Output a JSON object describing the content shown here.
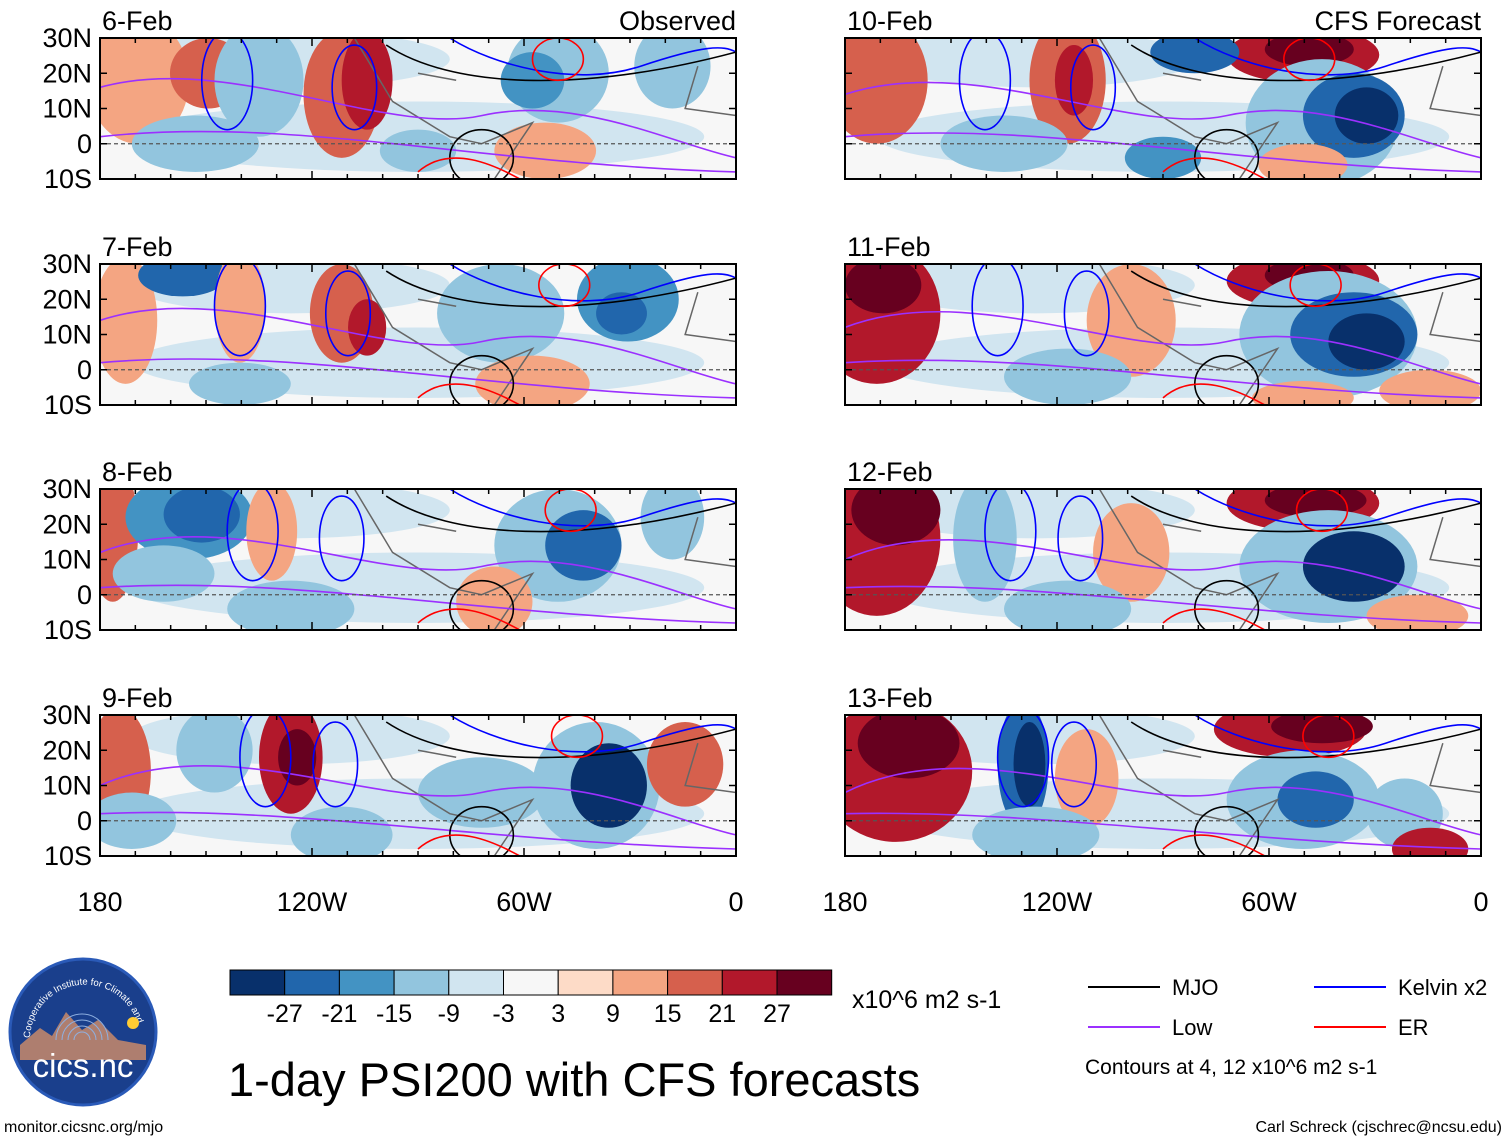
{
  "chart_data": {
    "type": "heatmap",
    "title": "1-day PSI200 with CFS forecasts",
    "variable": "PSI200",
    "units": "x10^6 m2 s-1",
    "columns": [
      {
        "heading": "Observed",
        "panels": [
          "6-Feb",
          "7-Feb",
          "8-Feb",
          "9-Feb"
        ]
      },
      {
        "heading": "CFS Forecast",
        "panels": [
          "10-Feb",
          "11-Feb",
          "12-Feb",
          "13-Feb"
        ]
      }
    ],
    "xaxis": {
      "ticks": [
        {
          "lon": 180,
          "label": "180"
        },
        {
          "lon": 120,
          "label": "120W"
        },
        {
          "lon": 60,
          "label": "60W"
        },
        {
          "lon": 0,
          "label": "0"
        }
      ],
      "xlim": [
        180,
        0
      ]
    },
    "yaxis": {
      "ticks": [
        {
          "lat": 30,
          "label": "30N"
        },
        {
          "lat": 20,
          "label": "20N"
        },
        {
          "lat": 10,
          "label": "10N"
        },
        {
          "lat": 0,
          "label": "0"
        },
        {
          "lat": -10,
          "label": "10S"
        }
      ],
      "ylim": [
        -10,
        30
      ]
    },
    "colorbar": {
      "colors": [
        "#08306b",
        "#2166ac",
        "#4393c3",
        "#92c5de",
        "#d1e5f0",
        "#f7f7f7",
        "#fddbc7",
        "#f4a582",
        "#d6604d",
        "#b2182b",
        "#67001f"
      ],
      "tick_labels": [
        "-27",
        "-21",
        "-15",
        "-9",
        "-3",
        "3",
        "9",
        "15",
        "21",
        "27"
      ],
      "units_label": "x10^6 m2 s-1"
    },
    "legend": [
      {
        "name": "MJO",
        "color": "#000000"
      },
      {
        "name": "Kelvin x2",
        "color": "#0000ff"
      },
      {
        "name": "Low",
        "color": "#9b30ff"
      },
      {
        "name": "ER",
        "color": "#ff0000"
      }
    ],
    "contour_note": "Contours at 4, 12 x10^6 m2 s-1"
  },
  "footer": {
    "left_url": "monitor.cicsnc.org/mjo",
    "credit": "Carl Schreck (cjschrec@ncsu.edu)",
    "logo_text": "cics.nc",
    "logo_arc_text": "Cooperative Institute for Climate and Satellites"
  }
}
